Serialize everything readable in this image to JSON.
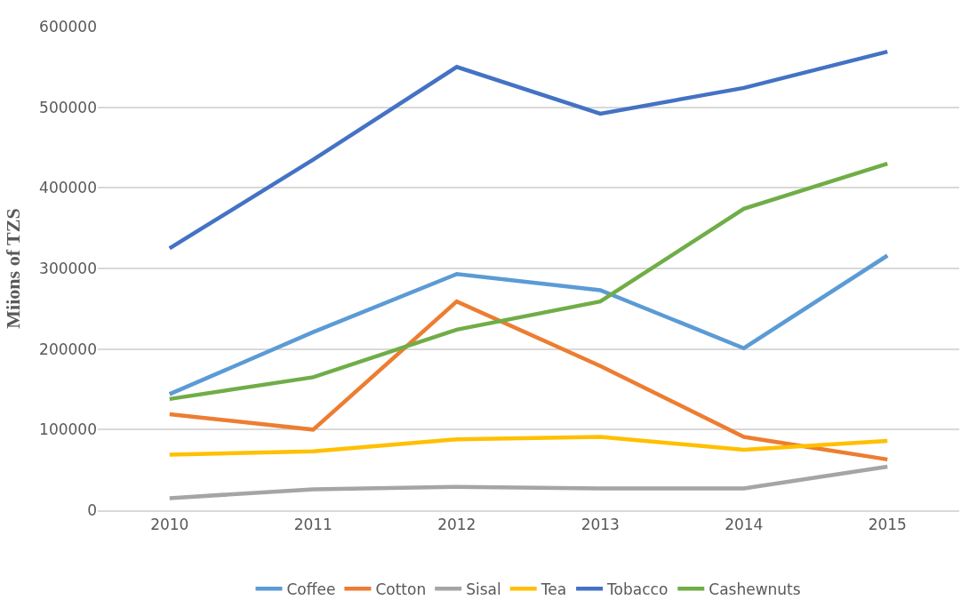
{
  "chart_data": {
    "type": "line",
    "ylabel": "Miions of TZS",
    "categories": [
      "2010",
      "2011",
      "2012",
      "2013",
      "2014",
      "2015"
    ],
    "series": [
      {
        "name": "Coffee",
        "color": "#5b9bd5",
        "values": [
          144000,
          221000,
          293000,
          273000,
          201000,
          316000
        ]
      },
      {
        "name": "Cotton",
        "color": "#ed7d31",
        "values": [
          119000,
          100000,
          259000,
          179000,
          91000,
          63000
        ]
      },
      {
        "name": "Sisal",
        "color": "#a5a5a5",
        "values": [
          15000,
          26000,
          29000,
          27000,
          27000,
          54000
        ]
      },
      {
        "name": "Tea",
        "color": "#ffc000",
        "values": [
          69000,
          73000,
          88000,
          91000,
          75000,
          86000
        ]
      },
      {
        "name": "Tobacco",
        "color": "#4472c4",
        "values": [
          325000,
          435000,
          550000,
          492000,
          524000,
          569000
        ]
      },
      {
        "name": "Cashewnuts",
        "color": "#70ad47",
        "values": [
          138000,
          165000,
          224000,
          259000,
          374000,
          430000
        ]
      }
    ],
    "ylim": [
      0,
      600000
    ],
    "yticks": [
      0,
      100000,
      200000,
      300000,
      400000,
      500000,
      600000
    ],
    "grid": "y",
    "legend": "bottom",
    "marker": "none",
    "line_style": "solid"
  }
}
